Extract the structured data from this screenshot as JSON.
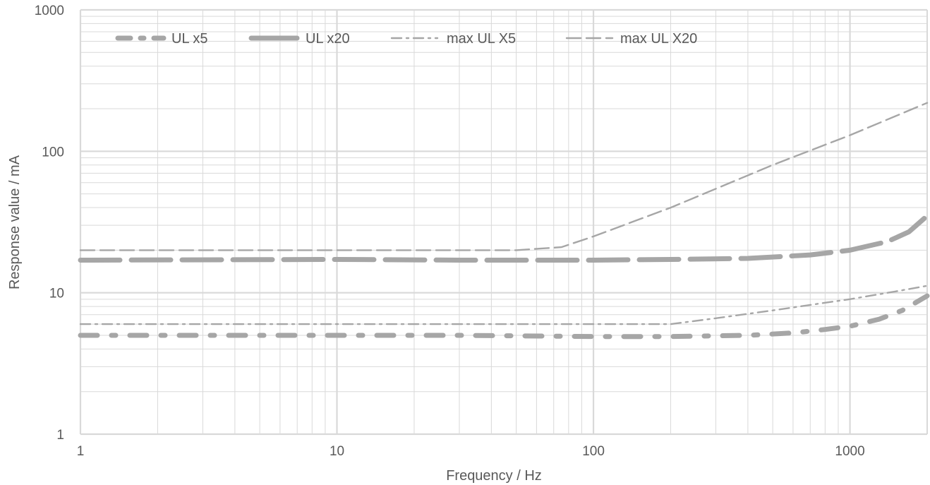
{
  "chart_data": {
    "type": "line",
    "title": "",
    "xlabel": "Frequency / Hz",
    "ylabel": "Response value / mA",
    "xscale": "log",
    "yscale": "log",
    "xlim": [
      1,
      2000
    ],
    "ylim": [
      1,
      1000
    ],
    "x_ticks": [
      "1",
      "10",
      "100",
      "1000"
    ],
    "y_ticks": [
      "1",
      "10",
      "100",
      "1000"
    ],
    "grid": true,
    "legend_position": "top",
    "series": [
      {
        "name": "UL x5",
        "color": "#a6a6a6",
        "style": "thick-dash-dot",
        "points": [
          [
            1,
            5.0
          ],
          [
            10,
            5.0
          ],
          [
            30,
            5.0
          ],
          [
            100,
            4.9
          ],
          [
            200,
            4.9
          ],
          [
            400,
            5.0
          ],
          [
            600,
            5.2
          ],
          [
            800,
            5.5
          ],
          [
            1000,
            5.8
          ],
          [
            1300,
            6.5
          ],
          [
            1600,
            7.5
          ],
          [
            2000,
            9.5
          ]
        ]
      },
      {
        "name": "UL x20",
        "color": "#a6a6a6",
        "style": "thick-long-dash",
        "points": [
          [
            1,
            17.0
          ],
          [
            10,
            17.2
          ],
          [
            30,
            17.0
          ],
          [
            70,
            17.0
          ],
          [
            100,
            17.0
          ],
          [
            200,
            17.2
          ],
          [
            400,
            17.5
          ],
          [
            700,
            18.5
          ],
          [
            1000,
            20.0
          ],
          [
            1400,
            23.0
          ],
          [
            1700,
            27.0
          ],
          [
            2000,
            35.0
          ]
        ]
      },
      {
        "name": "max UL X5",
        "color": "#a6a6a6",
        "style": "thin-dash-dot",
        "points": [
          [
            1,
            6.0
          ],
          [
            10,
            6.0
          ],
          [
            100,
            6.0
          ],
          [
            200,
            6.0
          ],
          [
            300,
            6.6
          ],
          [
            500,
            7.5
          ],
          [
            700,
            8.2
          ],
          [
            1000,
            9.0
          ],
          [
            1500,
            10.2
          ],
          [
            2000,
            11.2
          ]
        ]
      },
      {
        "name": "max UL X20",
        "color": "#a6a6a6",
        "style": "thin-dash",
        "points": [
          [
            1,
            20.0
          ],
          [
            10,
            20.0
          ],
          [
            50,
            20.0
          ],
          [
            75,
            21.0
          ],
          [
            100,
            25.0
          ],
          [
            200,
            40.0
          ],
          [
            500,
            80.0
          ],
          [
            1000,
            130.0
          ],
          [
            2000,
            220.0
          ]
        ]
      }
    ]
  }
}
